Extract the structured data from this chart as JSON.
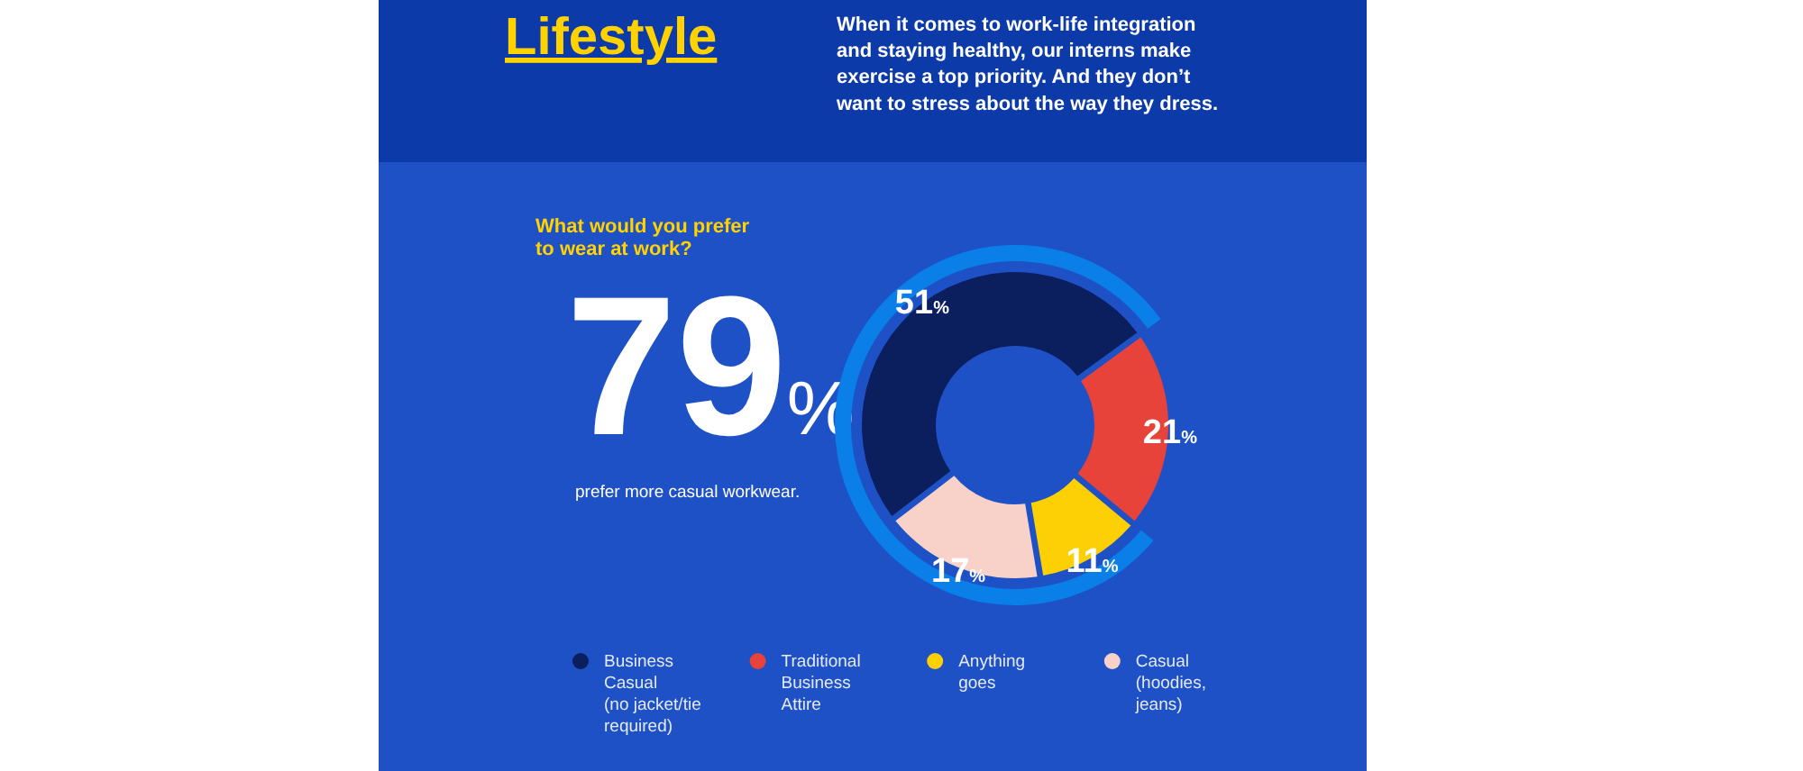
{
  "chart_data": {
    "type": "donut",
    "title": "Lifestyle",
    "subtitle": "When it comes to work-life integration and staying healthy, our interns make exercise a top priority. And they don’t want to stress about the way they dress.",
    "annotations": [
      "What would you prefer to wear at work?",
      "79%",
      "prefer more casual workwear."
    ],
    "categories": [
      "Business Casual (no jacket/tie required)",
      "Traditional Business Attire",
      "Anything goes",
      "Casual (hoodies, jeans)"
    ],
    "values": [
      51,
      21,
      11,
      17
    ],
    "colors": [
      "#0b1f5e",
      "#e8433a",
      "#fdd005",
      "#f8d2c9"
    ],
    "value_labels": [
      "51%",
      "21%",
      "11%",
      "17%"
    ],
    "legend": "bottom"
  }
}
